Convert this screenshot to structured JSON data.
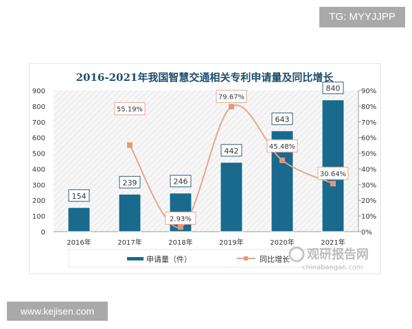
{
  "watermark_top": "TG: MYYJJPP",
  "watermark_bottom": "www.kejisen.com",
  "logo": {
    "text": "观研报告网",
    "url_text": "chinabaogao.com"
  },
  "colors": {
    "bar": "#1a6a8e",
    "line": "#e8a48c",
    "marker": "#e09a7c",
    "title": "#1f4e6b"
  },
  "chart_data": {
    "type": "bar+line",
    "title": "2016-2021年我国智慧交通相关专利申请量及同比增长",
    "categories": [
      "2016年",
      "2017年",
      "2018年",
      "2019年",
      "2020年",
      "2021年"
    ],
    "series": [
      {
        "name": "申请量（件）",
        "type": "bar",
        "axis": "left",
        "values": [
          154,
          239,
          246,
          442,
          643,
          840
        ],
        "labels": [
          "154",
          "239",
          "246",
          "442",
          "643",
          "840"
        ]
      },
      {
        "name": "同比增长",
        "type": "line",
        "axis": "right",
        "values": [
          null,
          55.19,
          2.93,
          79.67,
          45.48,
          30.64
        ],
        "labels": [
          "",
          "55.19%",
          "2.93%",
          "79.67%",
          "45.48%",
          "30.64%"
        ]
      }
    ],
    "y_left": {
      "range": [
        0,
        900
      ],
      "ticks": [
        "0",
        "100",
        "200",
        "300",
        "400",
        "500",
        "600",
        "700",
        "800",
        "900"
      ]
    },
    "y_right": {
      "range": [
        0,
        90
      ],
      "ticks": [
        "0%",
        "10%",
        "20%",
        "30%",
        "40%",
        "50%",
        "60%",
        "70%",
        "80%",
        "90%"
      ]
    },
    "grid": false,
    "legend": "bottom"
  }
}
